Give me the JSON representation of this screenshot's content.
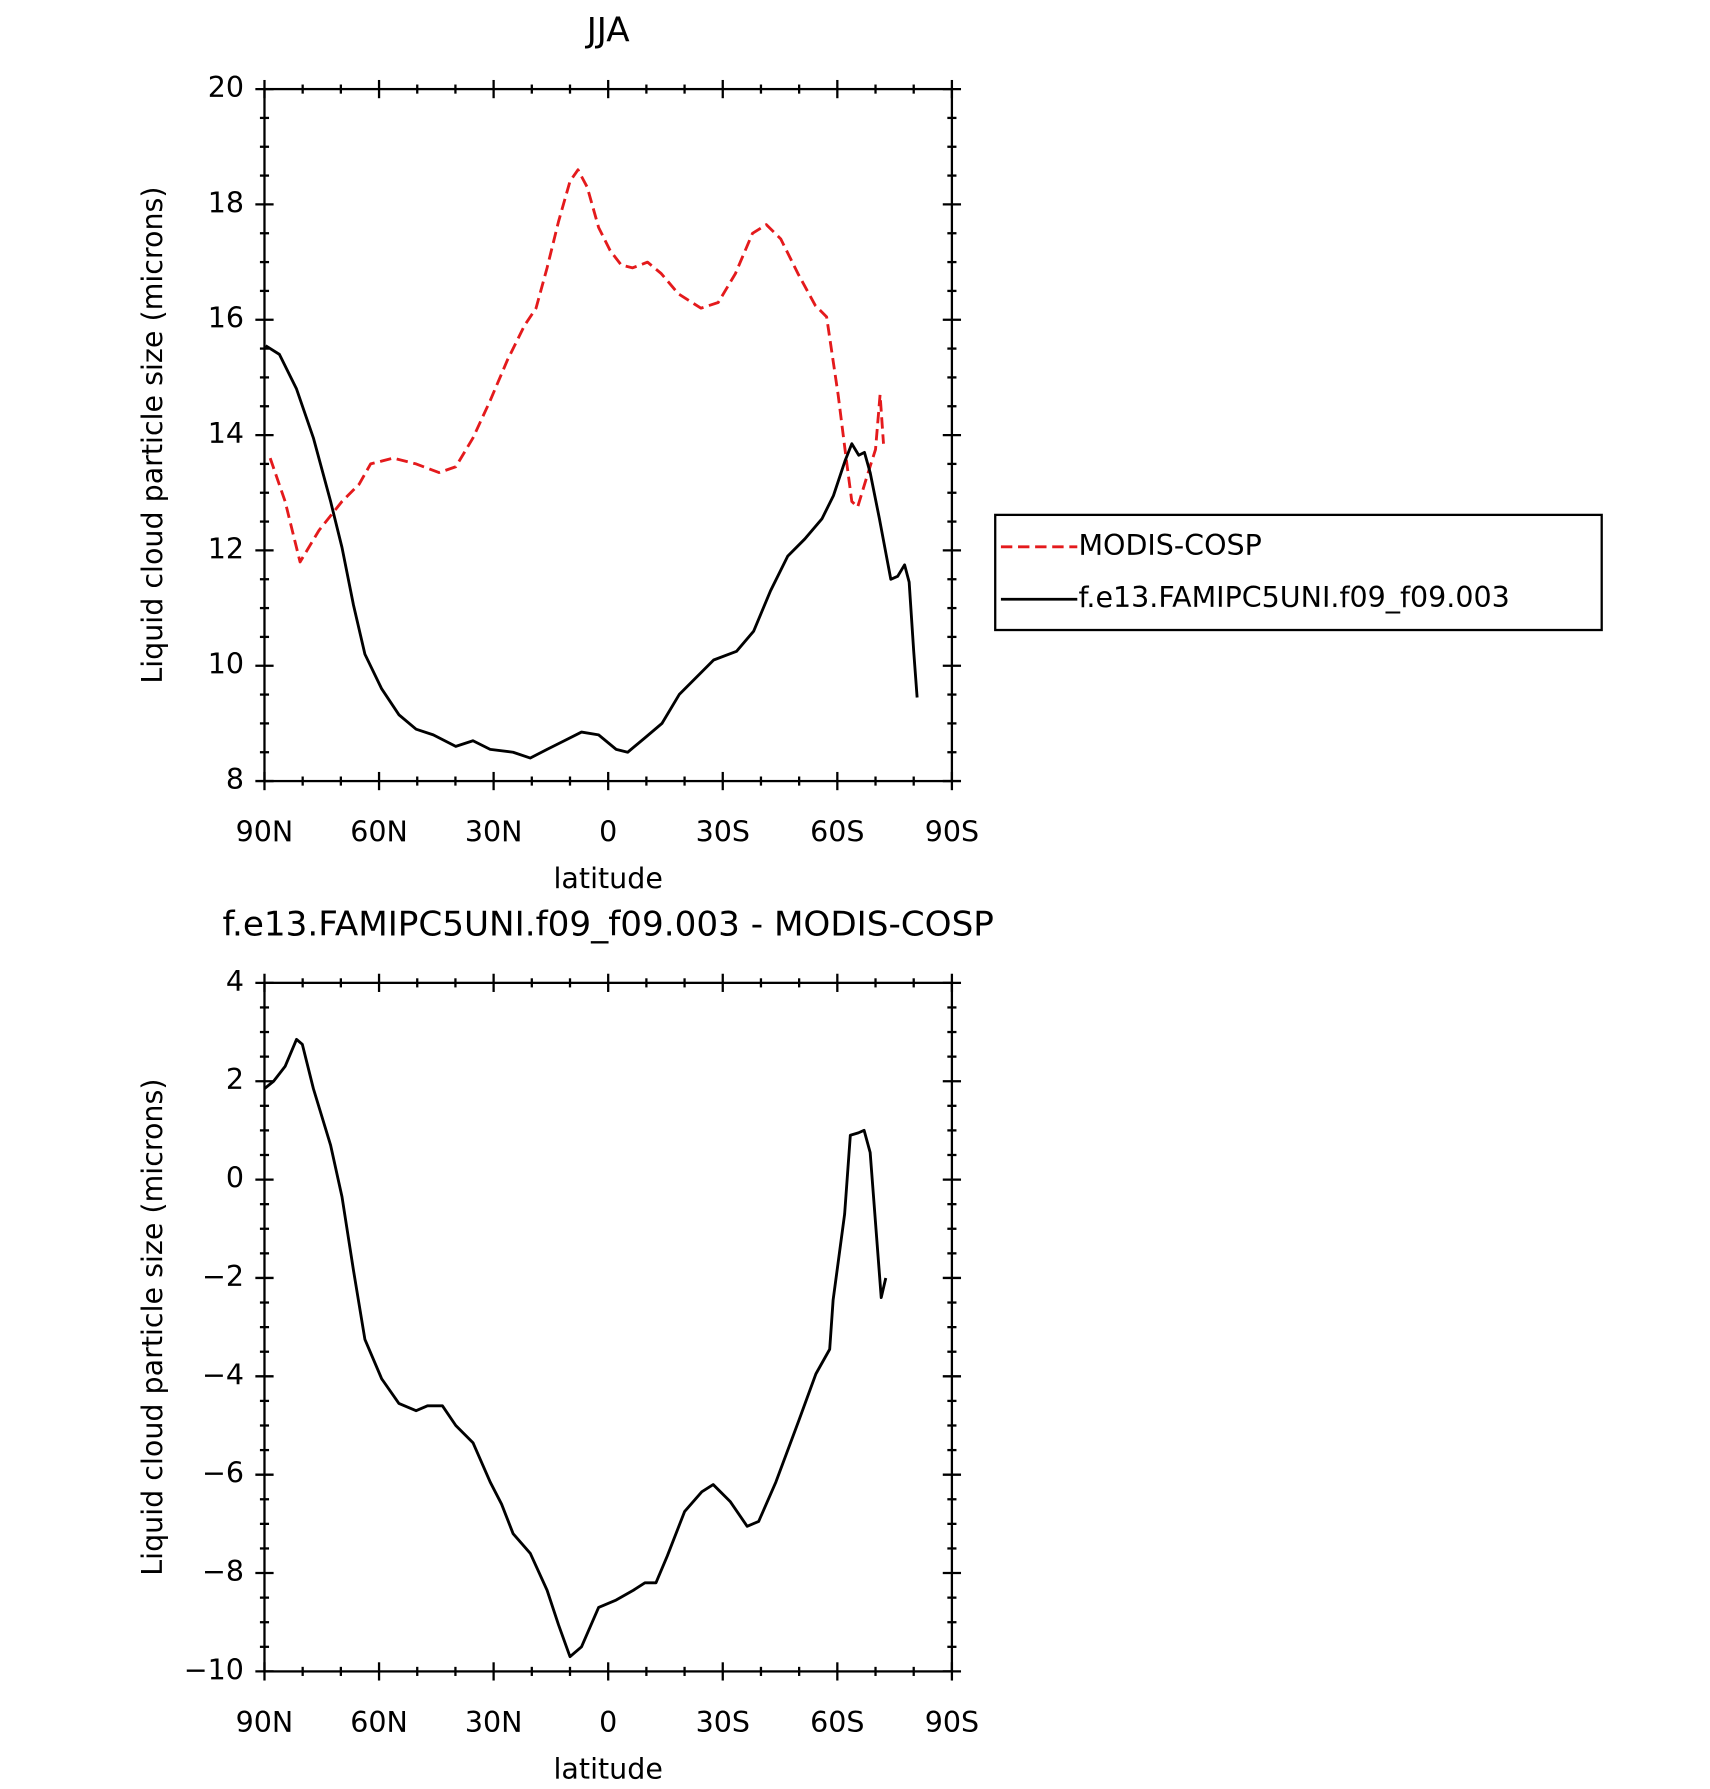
{
  "chart_data": [
    {
      "type": "line",
      "title": "JJA",
      "xlabel": "latitude",
      "ylabel": "Liquid cloud particle size (microns)",
      "xlim": [
        90,
        -90
      ],
      "ylim": [
        8,
        20
      ],
      "xticks": [
        {
          "value": 90,
          "label": "90N"
        },
        {
          "value": 60,
          "label": "60N"
        },
        {
          "value": 30,
          "label": "30N"
        },
        0,
        {
          "value": -30,
          "label": "30S"
        },
        {
          "value": -60,
          "label": "60S"
        },
        {
          "value": -90,
          "label": "90S"
        }
      ],
      "yticks": [
        8,
        10,
        12,
        14,
        16,
        18,
        20
      ],
      "legend": "right",
      "series": [
        {
          "name": "MODIS-COSP",
          "color": "#e41a1c",
          "dashed": true,
          "x": [
            88.5,
            84.6,
            80.7,
            75.7,
            69.7,
            65.2,
            62.2,
            56.3,
            50.3,
            44.3,
            39.9,
            35.4,
            30.9,
            26.4,
            21.9,
            18.9,
            16.0,
            13.0,
            10.0,
            7.9,
            5.5,
            2.5,
            -0.5,
            -3.4,
            -6.4,
            -10.3,
            -13.9,
            -18.4,
            -24.3,
            -28.8,
            -33.3,
            -37.8,
            -41.4,
            -45.2,
            -49.7,
            -54.2,
            -57.2,
            -60.2,
            -62.3,
            -63.8,
            -65.3,
            -67.6,
            -70.0,
            -71.2,
            -72.1
          ],
          "values": [
            13.6,
            12.85,
            11.8,
            12.35,
            12.85,
            13.15,
            13.5,
            13.6,
            13.5,
            13.35,
            13.45,
            13.95,
            14.6,
            15.3,
            15.9,
            16.2,
            16.9,
            17.7,
            18.4,
            18.6,
            18.3,
            17.6,
            17.2,
            16.95,
            16.9,
            17.0,
            16.8,
            16.45,
            16.2,
            16.3,
            16.8,
            17.5,
            17.65,
            17.4,
            16.8,
            16.25,
            16.05,
            14.7,
            13.6,
            12.85,
            12.75,
            13.25,
            13.75,
            14.7,
            13.85
          ]
        },
        {
          "name": "f.e13.FAMIPC5UNI.f09_f09.003",
          "color": "#000000",
          "dashed": false,
          "x": [
            89.7,
            86.1,
            81.6,
            77.2,
            72.7,
            69.7,
            66.7,
            63.7,
            59.3,
            54.8,
            50.3,
            45.8,
            39.9,
            35.4,
            30.9,
            24.9,
            20.4,
            16.0,
            11.5,
            7.0,
            2.5,
            -2.1,
            -5.1,
            -9.6,
            -14.1,
            -18.6,
            -23.1,
            -27.6,
            -33.6,
            -38.1,
            -42.5,
            -47.0,
            -51.5,
            -56.0,
            -59.0,
            -62.0,
            -63.8,
            -65.6,
            -67.1,
            -68.6,
            -71.0,
            -74.0,
            -75.8,
            -77.6,
            -78.8,
            -80.0,
            -80.9
          ],
          "values": [
            15.55,
            15.4,
            14.8,
            13.95,
            12.85,
            12.05,
            11.05,
            10.2,
            9.6,
            9.15,
            8.9,
            8.8,
            8.6,
            8.7,
            8.55,
            8.5,
            8.4,
            8.55,
            8.7,
            8.85,
            8.8,
            8.55,
            8.5,
            8.75,
            9.0,
            9.5,
            9.8,
            10.1,
            10.25,
            10.6,
            11.3,
            11.9,
            12.2,
            12.55,
            12.95,
            13.55,
            13.85,
            13.65,
            13.7,
            13.35,
            12.55,
            11.5,
            11.55,
            11.75,
            11.45,
            10.25,
            9.45
          ]
        }
      ]
    },
    {
      "type": "line",
      "title": "f.e13.FAMIPC5UNI.f09_f09.003 - MODIS-COSP",
      "xlabel": "latitude",
      "ylabel": "Liquid cloud particle size (microns)",
      "xlim": [
        90,
        -90
      ],
      "ylim": [
        -10,
        4
      ],
      "xticks": [
        {
          "value": 90,
          "label": "90N"
        },
        {
          "value": 60,
          "label": "60N"
        },
        {
          "value": 30,
          "label": "30N"
        },
        0,
        {
          "value": -30,
          "label": "30S"
        },
        {
          "value": -60,
          "label": "60S"
        },
        {
          "value": -90,
          "label": "90S"
        }
      ],
      "yticks": [
        {
          "value": -10,
          "label": "−10"
        },
        {
          "value": -8,
          "label": "−8"
        },
        {
          "value": -6,
          "label": "−6"
        },
        {
          "value": -4,
          "label": "−4"
        },
        {
          "value": -2,
          "label": "−2"
        },
        0,
        2,
        4
      ],
      "series": [
        {
          "color": "#000000",
          "dashed": false,
          "x": [
            90,
            87.6,
            84.6,
            81.6,
            80.1,
            77.2,
            72.7,
            69.7,
            66.7,
            63.7,
            59.3,
            54.8,
            50.3,
            47.3,
            43.4,
            39.9,
            35.4,
            30.9,
            27.9,
            24.9,
            20.4,
            16.0,
            13.0,
            10.0,
            7.0,
            2.5,
            -2.1,
            -6.6,
            -9.6,
            -12.5,
            -15.5,
            -20.0,
            -24.5,
            -27.5,
            -32.0,
            -36.4,
            -39.4,
            -43.9,
            -49.9,
            -54.4,
            -58.0,
            -58.9,
            -61.9,
            -63.4,
            -65.5,
            -67.0,
            -68.6,
            -71.5,
            -72.7
          ],
          "values": [
            1.85,
            2.0,
            2.3,
            2.85,
            2.75,
            1.85,
            0.7,
            -0.35,
            -1.85,
            -3.25,
            -4.05,
            -4.55,
            -4.7,
            -4.6,
            -4.6,
            -5.0,
            -5.35,
            -6.15,
            -6.6,
            -7.2,
            -7.6,
            -8.35,
            -9.05,
            -9.7,
            -9.5,
            -8.7,
            -8.55,
            -8.35,
            -8.2,
            -8.2,
            -7.65,
            -6.75,
            -6.35,
            -6.2,
            -6.55,
            -7.05,
            -6.95,
            -6.15,
            -4.9,
            -3.95,
            -3.45,
            -2.45,
            -0.7,
            0.9,
            0.95,
            1.0,
            0.55,
            -2.4,
            -2.0
          ]
        }
      ]
    }
  ]
}
